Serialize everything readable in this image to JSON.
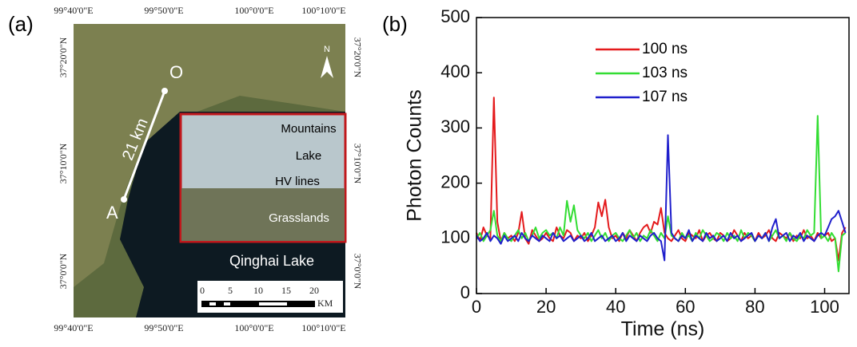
{
  "map": {
    "panel_label": "(a)",
    "top_labels": [
      "99°40'0\"E",
      "99°50'0\"E",
      "100°0'0\"E",
      "100°10'0\"E"
    ],
    "bottom_labels": [
      "99°40'0\"E",
      "99°50'0\"E",
      "100°0'0\"E",
      "100°10'0\"E"
    ],
    "left_labels": [
      "37°20'0\"N",
      "37°10'0\"N",
      "37°0'0\"N"
    ],
    "right_labels": [
      "37°20'0\"N",
      "37°10'0\"N",
      "37°0'0\"N"
    ],
    "point_o": "O",
    "point_a": "A",
    "distance": "21 km",
    "north": "N",
    "inset_labels": [
      "Mountains",
      "Lake",
      "HV lines",
      "Grasslands"
    ],
    "lake_name": "Qinghai Lake",
    "scale_labels": [
      "0",
      "5",
      "10",
      "15",
      "20"
    ],
    "scale_unit": "KM"
  },
  "chart_data": {
    "type": "line",
    "panel_label": "(b)",
    "x_label": "Time (ns)",
    "y_label": "Photon Counts",
    "xlim": [
      0,
      107
    ],
    "xticks": [
      0,
      20,
      40,
      60,
      80,
      100
    ],
    "ylim": [
      0,
      500
    ],
    "yticks": [
      0,
      100,
      200,
      300,
      400,
      500
    ],
    "legend": "upper center",
    "x": [
      0,
      1,
      2,
      3,
      4,
      5,
      6,
      7,
      8,
      9,
      10,
      11,
      12,
      13,
      14,
      15,
      16,
      17,
      18,
      19,
      20,
      21,
      22,
      23,
      24,
      25,
      26,
      27,
      28,
      29,
      30,
      31,
      32,
      33,
      34,
      35,
      36,
      37,
      38,
      39,
      40,
      41,
      42,
      43,
      44,
      45,
      46,
      47,
      48,
      49,
      50,
      51,
      52,
      53,
      54,
      55,
      56,
      57,
      58,
      59,
      60,
      61,
      62,
      63,
      64,
      65,
      66,
      67,
      68,
      69,
      70,
      71,
      72,
      73,
      74,
      75,
      76,
      77,
      78,
      79,
      80,
      81,
      82,
      83,
      84,
      85,
      86,
      87,
      88,
      89,
      90,
      91,
      92,
      93,
      94,
      95,
      96,
      97,
      98,
      99,
      100,
      101,
      102,
      103,
      104,
      105,
      106
    ],
    "series": [
      {
        "name": "100 ns",
        "color": "#e41a1c",
        "values": [
          110,
          95,
          120,
          105,
          100,
          355,
          130,
          95,
          110,
          100,
          105,
          95,
          110,
          148,
          100,
          90,
          115,
          105,
          95,
          100,
          110,
          100,
          95,
          120,
          105,
          100,
          115,
          110,
          95,
          105,
          100,
          110,
          95,
          105,
          120,
          165,
          140,
          170,
          120,
          100,
          105,
          95,
          110,
          100,
          115,
          105,
          95,
          110,
          120,
          125,
          110,
          130,
          125,
          155,
          110,
          100,
          95,
          105,
          115,
          100,
          95,
          110,
          105,
          100,
          115,
          95,
          105,
          110,
          100,
          95,
          110,
          105,
          95,
          100,
          115,
          105,
          95,
          110,
          100,
          105,
          95,
          110,
          100,
          105,
          115,
          100,
          95,
          110,
          105,
          100,
          110,
          95,
          105,
          100,
          115,
          100,
          105,
          95,
          110,
          100,
          105,
          110,
          95,
          100,
          60,
          110,
          120
        ]
      },
      {
        "name": "103 ns",
        "color": "#33dd33",
        "values": [
          100,
          110,
          95,
          105,
          115,
          150,
          105,
          95,
          110,
          100,
          95,
          105,
          115,
          100,
          110,
          95,
          105,
          120,
          100,
          110,
          115,
          105,
          110,
          100,
          120,
          105,
          168,
          130,
          160,
          115,
          105,
          100,
          110,
          95,
          105,
          115,
          100,
          110,
          95,
          105,
          110,
          100,
          95,
          105,
          115,
          100,
          110,
          95,
          105,
          100,
          115,
          105,
          95,
          110,
          100,
          140,
          105,
          100,
          95,
          110,
          100,
          105,
          95,
          110,
          100,
          115,
          105,
          95,
          100,
          110,
          105,
          95,
          110,
          100,
          105,
          95,
          115,
          100,
          110,
          105,
          95,
          105,
          100,
          110,
          95,
          105,
          115,
          100,
          105,
          95,
          110,
          100,
          95,
          105,
          100,
          115,
          105,
          110,
          322,
          100,
          105,
          95,
          110,
          100,
          40,
          105,
          110
        ]
      },
      {
        "name": "107 ns",
        "color": "#1f1fcc",
        "values": [
          105,
          95,
          100,
          110,
          95,
          105,
          100,
          90,
          105,
          95,
          100,
          105,
          95,
          110,
          100,
          95,
          105,
          100,
          95,
          105,
          100,
          95,
          110,
          100,
          105,
          95,
          100,
          105,
          95,
          100,
          105,
          95,
          100,
          110,
          95,
          100,
          105,
          95,
          100,
          105,
          95,
          100,
          110,
          95,
          105,
          100,
          95,
          105,
          100,
          95,
          105,
          110,
          100,
          95,
          60,
          287,
          110,
          100,
          95,
          105,
          100,
          115,
          95,
          105,
          100,
          95,
          110,
          100,
          105,
          95,
          100,
          105,
          95,
          110,
          100,
          105,
          95,
          100,
          105,
          110,
          95,
          105,
          100,
          110,
          95,
          120,
          135,
          100,
          105,
          110,
          95,
          105,
          100,
          110,
          95,
          105,
          100,
          95,
          105,
          110,
          105,
          120,
          135,
          140,
          150,
          130,
          110
        ]
      }
    ]
  }
}
